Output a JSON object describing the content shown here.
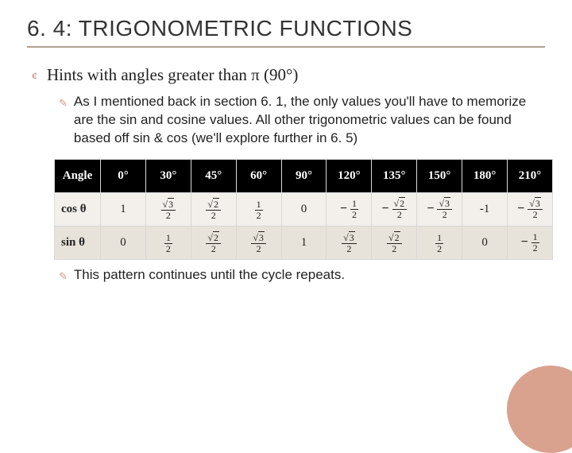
{
  "title": "6. 4: TRIGONOMETRIC FUNCTIONS",
  "bullet1": "Hints with angles greater than π (90°)",
  "sub1_lead": "As",
  "sub1_rest": " I mentioned back in section 6. 1, the only values you'll have to memorize are the sin and cosine values. All other trigonometric values can be found based off sin & cos (we'll explore further in 6. 5)",
  "sub2_lead": "This",
  "sub2_rest": " pattern continues until the cycle repeats.",
  "table": {
    "headers": [
      "Angle",
      "0°",
      "30°",
      "45°",
      "60°",
      "90°",
      "120°",
      "135°",
      "150°",
      "180°",
      "210°"
    ],
    "rows": [
      {
        "label": "cos θ",
        "cells": [
          {
            "t": "plain",
            "v": "1"
          },
          {
            "t": "frac",
            "num": "√3",
            "den": "2"
          },
          {
            "t": "frac",
            "num": "√2",
            "den": "2"
          },
          {
            "t": "frac",
            "num": "1",
            "den": "2"
          },
          {
            "t": "plain",
            "v": "0"
          },
          {
            "t": "negfrac",
            "num": "1",
            "den": "2"
          },
          {
            "t": "negfrac",
            "num": "√2",
            "den": "2"
          },
          {
            "t": "negfrac",
            "num": "√3",
            "den": "2"
          },
          {
            "t": "plain",
            "v": "-1"
          },
          {
            "t": "negfrac",
            "num": "√3",
            "den": "2"
          }
        ]
      },
      {
        "label": "sin θ",
        "cells": [
          {
            "t": "plain",
            "v": "0"
          },
          {
            "t": "frac",
            "num": "1",
            "den": "2"
          },
          {
            "t": "frac",
            "num": "√2",
            "den": "2"
          },
          {
            "t": "frac",
            "num": "√3",
            "den": "2"
          },
          {
            "t": "plain",
            "v": "1"
          },
          {
            "t": "frac",
            "num": "√3",
            "den": "2"
          },
          {
            "t": "frac",
            "num": "√2",
            "den": "2"
          },
          {
            "t": "frac",
            "num": "1",
            "den": "2"
          },
          {
            "t": "plain",
            "v": "0"
          },
          {
            "t": "negfrac",
            "num": "1",
            "den": "2"
          }
        ]
      }
    ]
  },
  "colors": {
    "accent": "#cf9b8e",
    "circle": "#d9a28f"
  }
}
